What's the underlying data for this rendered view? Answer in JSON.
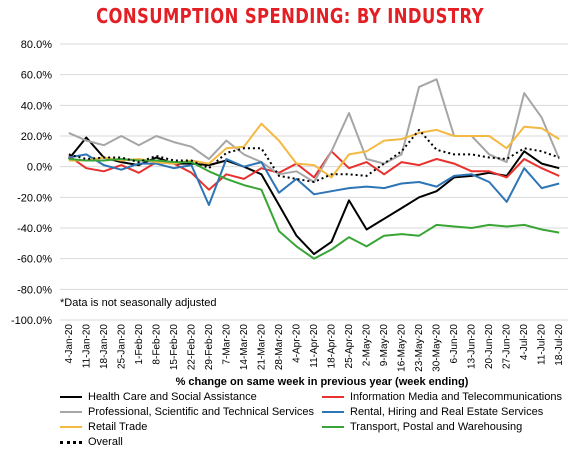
{
  "chart_data": {
    "type": "line",
    "title": "CONSUMPTION SPENDING: BY INDUSTRY",
    "xlabel": "% change on same week in previous year (week ending)",
    "ylabel": "",
    "ylim": [
      -100,
      80
    ],
    "y_ticks": [
      "80.0%",
      "60.0%",
      "40.0%",
      "20.0%",
      "0.0%",
      "-20.0%",
      "-40.0%",
      "-60.0%",
      "-80.0%",
      "-100.0%"
    ],
    "x": [
      "4-Jan-20",
      "11-Jan-20",
      "18-Jan-20",
      "25-Jan-20",
      "1-Feb-20",
      "8-Feb-20",
      "15-Feb-20",
      "22-Feb-20",
      "29-Feb-20",
      "7-Mar-20",
      "14-Mar-20",
      "21-Mar-20",
      "28-Mar-20",
      "4-Apr-20",
      "11-Apr-20",
      "18-Apr-20",
      "25-Apr-20",
      "2-May-20",
      "9-May-20",
      "16-May-20",
      "23-May-20",
      "30-May-20",
      "6-Jun-20",
      "13-Jun-20",
      "20-Jun-20",
      "27-Jun-20",
      "4-Jul-20",
      "11-Jul-20",
      "18-Jul-20"
    ],
    "annotation": "*Data is not seasonally adjusted",
    "grid": "horizontal",
    "legend_position": "bottom",
    "title_color": "#e31e24",
    "series": [
      {
        "name": "Health Care and Social Assistance",
        "color": "#000000",
        "style": "solid",
        "values": [
          5,
          19,
          6,
          3,
          1,
          6,
          2,
          2,
          1,
          4,
          0,
          -5,
          -25,
          -45,
          -57,
          -49,
          -22,
          -41,
          -34,
          -27,
          -20,
          -16,
          -7,
          -6,
          -4,
          -6,
          10,
          2,
          -1
        ]
      },
      {
        "name": "Information Media and Telecommunications",
        "color": "#e8312f",
        "style": "solid",
        "values": [
          7,
          -1,
          -3,
          1,
          -4,
          3,
          2,
          -4,
          -15,
          -5,
          -8,
          -1,
          -4,
          2,
          -7,
          10,
          -1,
          3,
          -5,
          3,
          1,
          5,
          2,
          -3,
          -3,
          -7,
          5,
          -1,
          -6
        ]
      },
      {
        "name": "Professional, Scientific and Technical Services",
        "color": "#a6a6a6",
        "style": "solid",
        "values": [
          22,
          17,
          14,
          20,
          14,
          20,
          16,
          13,
          5,
          17,
          8,
          3,
          -5,
          -3,
          -10,
          10,
          35,
          5,
          2,
          8,
          52,
          57,
          20,
          20,
          8,
          3,
          48,
          32,
          5
        ]
      },
      {
        "name": "Rental, Hiring and Real Estate Services",
        "color": "#2e75b6",
        "style": "solid",
        "values": [
          6,
          8,
          1,
          -2,
          2,
          2,
          -1,
          1,
          -25,
          5,
          0,
          3,
          -17,
          -8,
          -18,
          -16,
          -14,
          -13,
          -14,
          -11,
          -10,
          -13,
          -6,
          -5,
          -10,
          -23,
          -1,
          -14,
          -11
        ]
      },
      {
        "name": "Retail Trade",
        "color": "#f4b942",
        "style": "solid",
        "values": [
          4,
          4,
          6,
          4,
          5,
          3,
          2,
          4,
          2,
          12,
          13,
          28,
          17,
          2,
          1,
          -7,
          8,
          10,
          17,
          18,
          22,
          24,
          20,
          20,
          20,
          12,
          26,
          25,
          18
        ]
      },
      {
        "name": "Transport, Postal and Warehousing",
        "color": "#3aa537",
        "style": "solid",
        "values": [
          5,
          4,
          4,
          5,
          4,
          4,
          3,
          3,
          -3,
          -8,
          -12,
          -15,
          -42,
          -52,
          -60,
          -54,
          -46,
          -52,
          -45,
          -44,
          -45,
          -38,
          -39,
          -40,
          -38,
          -39,
          -38,
          -41,
          -43
        ]
      },
      {
        "name": "Overall",
        "color": "#000000",
        "style": "dotted",
        "values": [
          8,
          5,
          6,
          6,
          3,
          7,
          4,
          4,
          -1,
          9,
          12,
          12,
          -6,
          -8,
          -10,
          -5,
          -5,
          -6,
          2,
          10,
          24,
          11,
          8,
          8,
          6,
          5,
          12,
          10,
          6
        ]
      }
    ]
  }
}
